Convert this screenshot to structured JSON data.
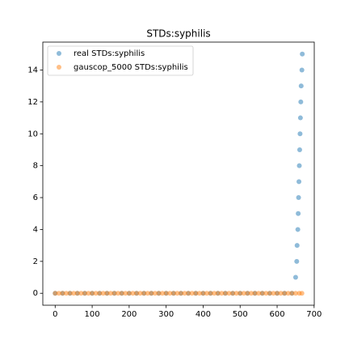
{
  "chart_data": {
    "type": "scatter",
    "title": "STDs:syphilis",
    "xlim": [
      -33.4,
      700.4
    ],
    "xticks": [
      0,
      100,
      200,
      300,
      400,
      500,
      600,
      700
    ],
    "ylim": [
      -0.75,
      15.75
    ],
    "yticks": [
      0,
      2,
      4,
      6,
      8,
      10,
      12,
      14
    ],
    "legend": "upper left",
    "series": [
      {
        "name": "real STDs:syphilis",
        "color": "#1f77b4",
        "x": [
          0,
          20,
          40,
          60,
          80,
          100,
          120,
          140,
          160,
          180,
          200,
          220,
          240,
          260,
          280,
          300,
          320,
          340,
          360,
          380,
          400,
          420,
          440,
          460,
          480,
          500,
          520,
          540,
          560,
          580,
          600,
          620,
          640,
          650,
          653,
          654,
          656,
          657,
          658,
          659,
          660,
          661,
          662,
          663,
          664,
          665,
          667,
          668
        ],
        "values": [
          0,
          0,
          0,
          0,
          0,
          0,
          0,
          0,
          0,
          0,
          0,
          0,
          0,
          0,
          0,
          0,
          0,
          0,
          0,
          0,
          0,
          0,
          0,
          0,
          0,
          0,
          0,
          0,
          0,
          0,
          0,
          0,
          0,
          1,
          2,
          3,
          4,
          5,
          6,
          7,
          8,
          9,
          10,
          11,
          12,
          13,
          14,
          15
        ]
      },
      {
        "name": "gauscop_5000 STDs:syphilis",
        "color": "#ff7f0e",
        "x": [
          0,
          10,
          20,
          30,
          40,
          50,
          60,
          70,
          80,
          90,
          100,
          110,
          120,
          130,
          140,
          150,
          160,
          170,
          180,
          190,
          200,
          210,
          220,
          230,
          240,
          250,
          260,
          270,
          280,
          290,
          300,
          310,
          320,
          330,
          340,
          350,
          360,
          370,
          380,
          390,
          400,
          410,
          420,
          430,
          440,
          450,
          460,
          470,
          480,
          490,
          500,
          510,
          520,
          530,
          540,
          550,
          560,
          570,
          580,
          590,
          600,
          610,
          620,
          630,
          640,
          650,
          660,
          667
        ],
        "values": [
          0,
          0,
          0,
          0,
          0,
          0,
          0,
          0,
          0,
          0,
          0,
          0,
          0,
          0,
          0,
          0,
          0,
          0,
          0,
          0,
          0,
          0,
          0,
          0,
          0,
          0,
          0,
          0,
          0,
          0,
          0,
          0,
          0,
          0,
          0,
          0,
          0,
          0,
          0,
          0,
          0,
          0,
          0,
          0,
          0,
          0,
          0,
          0,
          0,
          0,
          0,
          0,
          0,
          0,
          0,
          0,
          0,
          0,
          0,
          0,
          0,
          0,
          0,
          0,
          0,
          0,
          0,
          0
        ]
      }
    ]
  }
}
